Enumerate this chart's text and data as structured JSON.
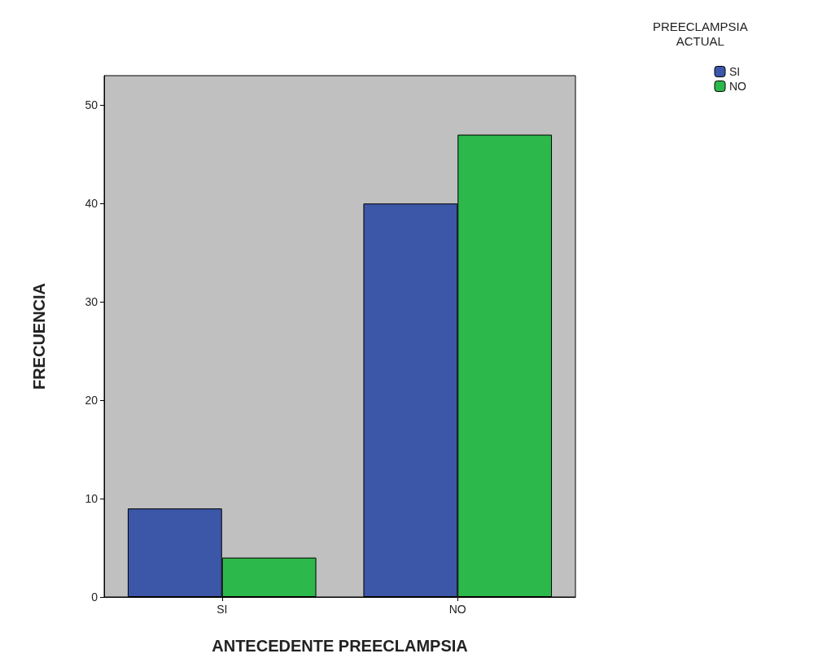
{
  "chart_data": {
    "type": "bar",
    "xlabel": "ANTECEDENTE PREECLAMPSIA",
    "ylabel": "FRECUENCIA",
    "legend_title": "PREECLAMPSIA\nACTUAL",
    "legend": "top right",
    "grid": false,
    "categories": [
      "SI",
      "NO"
    ],
    "series": [
      {
        "name": "SI",
        "color": "#3c56a8",
        "values": [
          9,
          40
        ]
      },
      {
        "name": "NO",
        "color": "#2db84b",
        "values": [
          4,
          47
        ]
      }
    ],
    "ylim": [
      0,
      53
    ],
    "yticks": [
      0,
      10,
      20,
      30,
      40,
      50
    ]
  }
}
